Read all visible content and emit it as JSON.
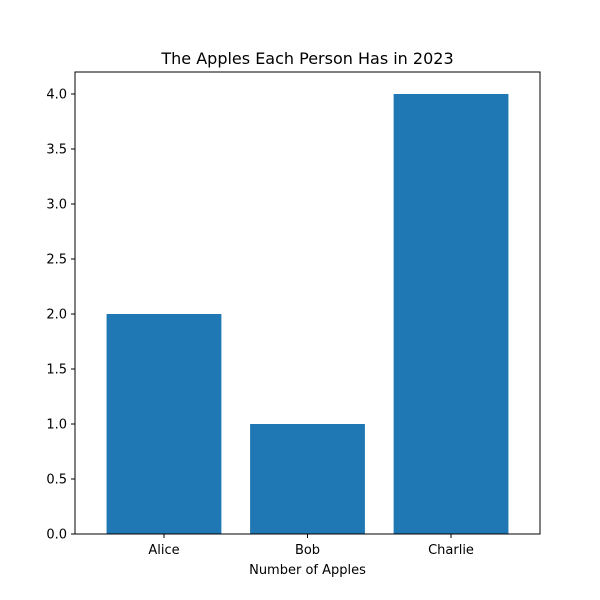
{
  "chart_data": {
    "type": "bar",
    "title": "The Apples Each Person Has in 2023",
    "xlabel": "Number of Apples",
    "ylabel": "",
    "categories": [
      "Alice",
      "Bob",
      "Charlie"
    ],
    "values": [
      2,
      1,
      4
    ],
    "ylim": [
      0,
      4.2
    ],
    "yticks": [
      "0.0",
      "0.5",
      "1.0",
      "1.5",
      "2.0",
      "2.5",
      "3.0",
      "3.5",
      "4.0"
    ],
    "grid": false,
    "legend": "none",
    "bar_color": "#1f77b4"
  }
}
